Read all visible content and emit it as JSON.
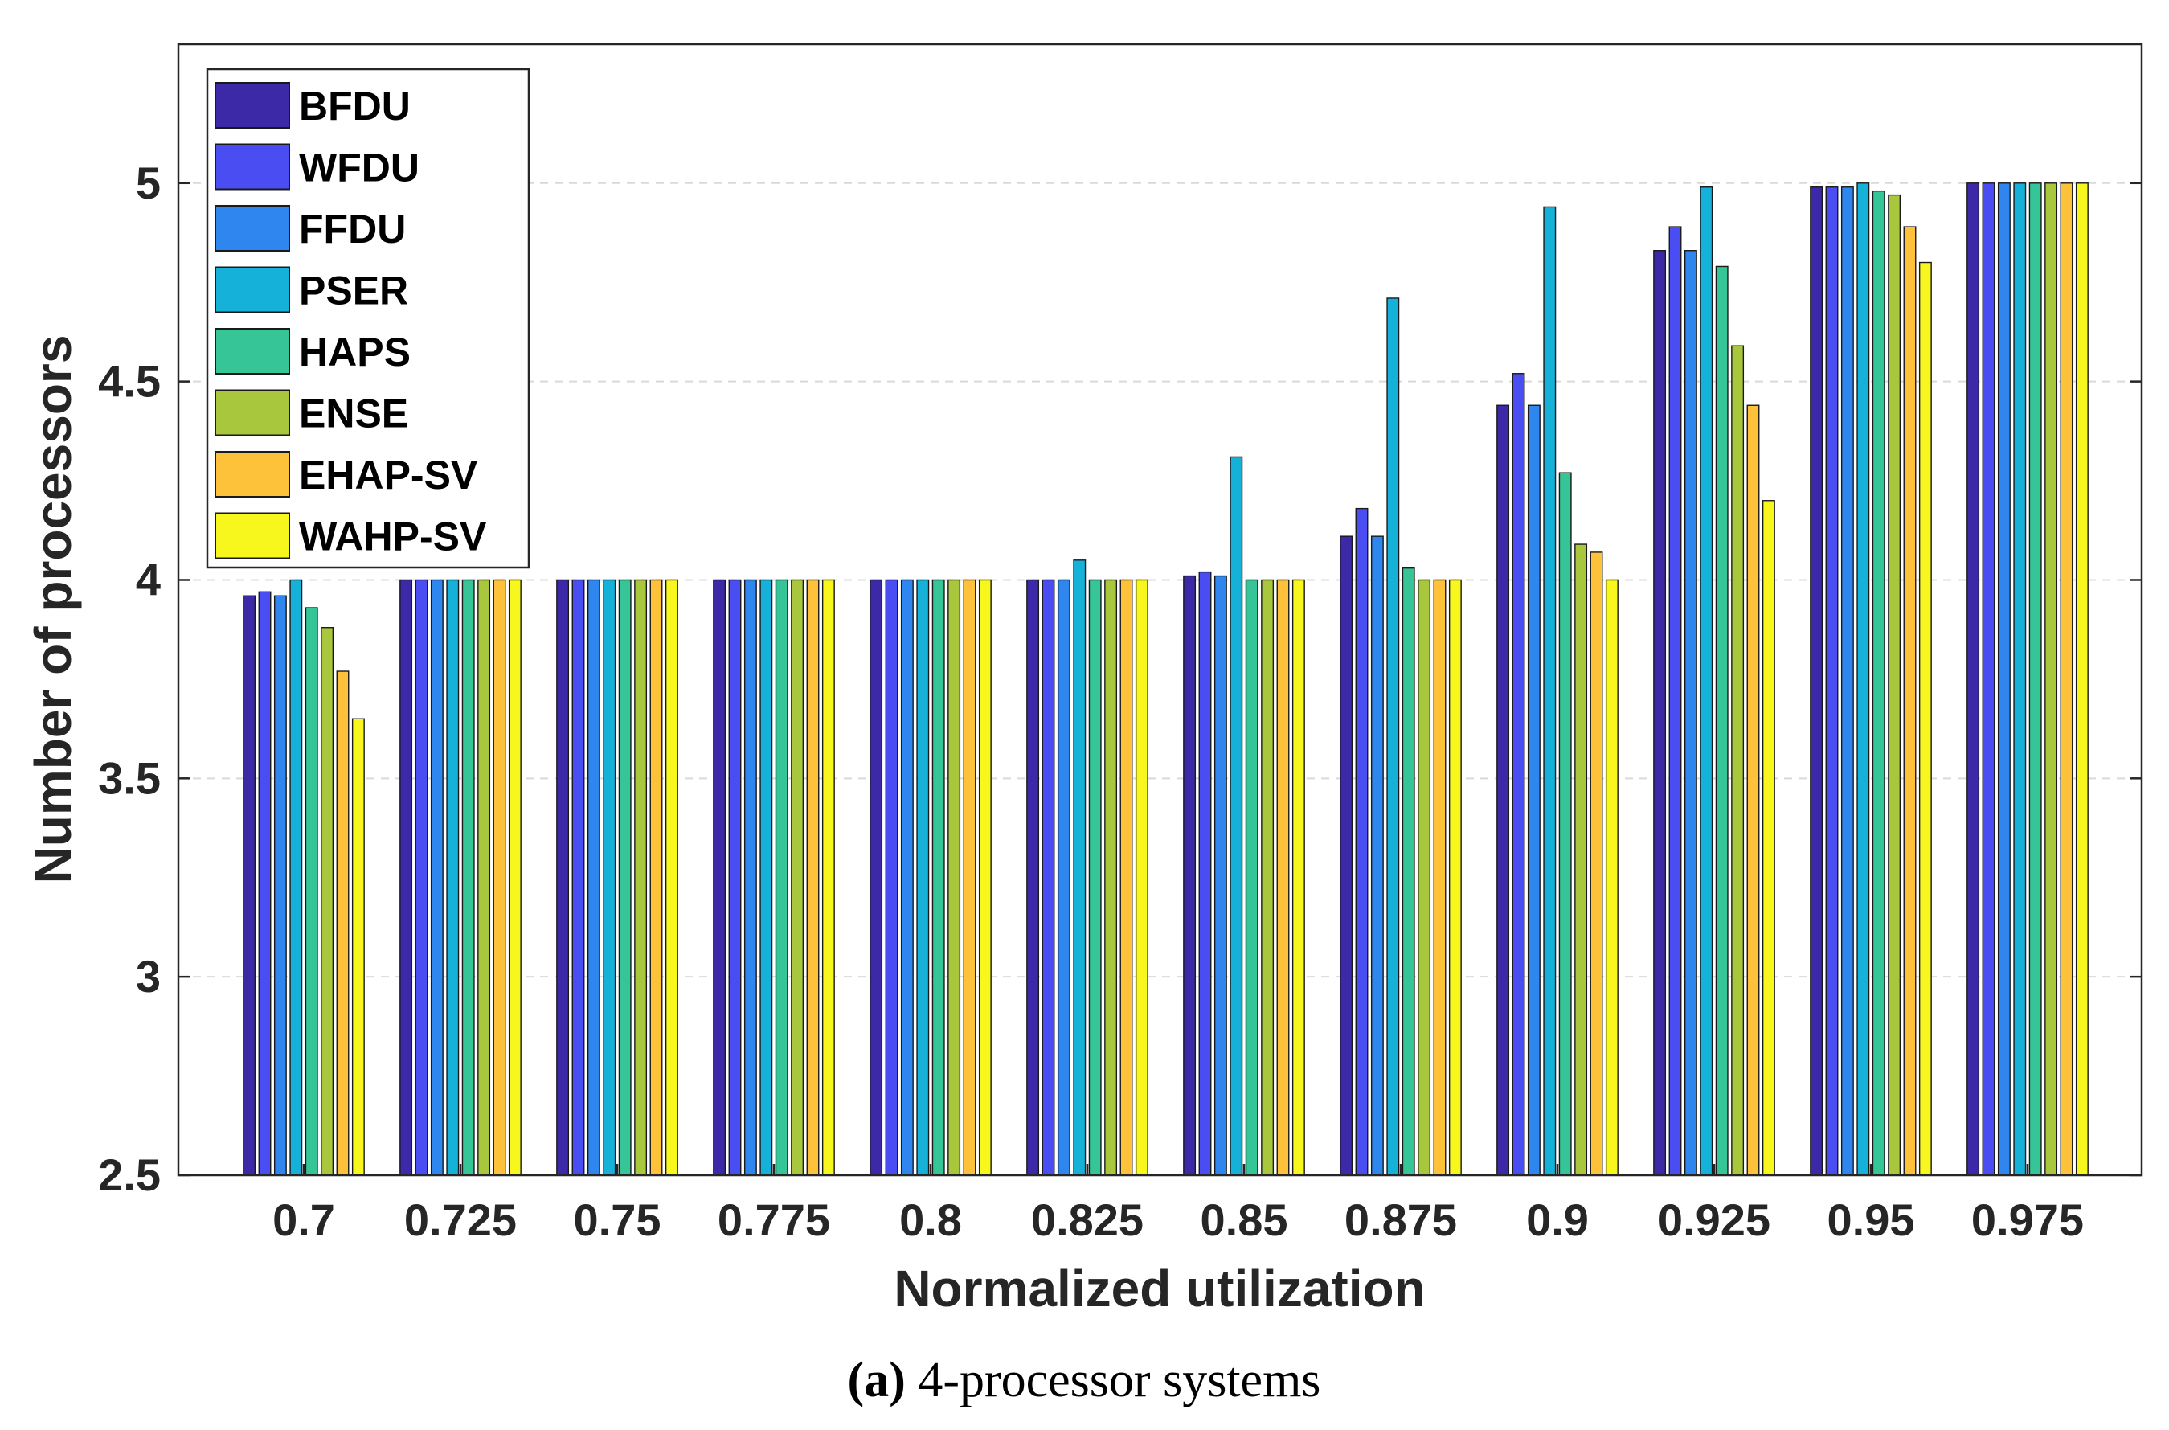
{
  "chart_data": {
    "type": "bar",
    "caption_prefix": "(a)",
    "caption_rest": " 4-processor systems",
    "xlabel": "Normalized utilization",
    "ylabel": "Number of processors",
    "ylim": [
      2.5,
      5.35
    ],
    "yticks": [
      "2.5",
      "3",
      "3.5",
      "4",
      "4.5",
      "5"
    ],
    "grid": true,
    "legend_position": "top-left",
    "categories": [
      "0.7",
      "0.725",
      "0.75",
      "0.775",
      "0.8",
      "0.825",
      "0.85",
      "0.875",
      "0.9",
      "0.925",
      "0.95",
      "0.975"
    ],
    "series": [
      {
        "name": "BFDU",
        "color": "#3b29a8",
        "values": [
          3.96,
          4.0,
          4.0,
          4.0,
          4.0,
          4.0,
          4.01,
          4.11,
          4.44,
          4.83,
          4.99,
          5.0
        ]
      },
      {
        "name": "WFDU",
        "color": "#4a4ef2",
        "values": [
          3.97,
          4.0,
          4.0,
          4.0,
          4.0,
          4.0,
          4.02,
          4.18,
          4.52,
          4.89,
          4.99,
          5.0
        ]
      },
      {
        "name": "FFDU",
        "color": "#2e86ee",
        "values": [
          3.96,
          4.0,
          4.0,
          4.0,
          4.0,
          4.0,
          4.01,
          4.11,
          4.44,
          4.83,
          4.99,
          5.0
        ]
      },
      {
        "name": "PSER",
        "color": "#16b1d8",
        "values": [
          4.0,
          4.0,
          4.0,
          4.0,
          4.0,
          4.05,
          4.31,
          4.71,
          4.94,
          4.99,
          5.0,
          5.0
        ]
      },
      {
        "name": "HAPS",
        "color": "#36c597",
        "values": [
          3.93,
          4.0,
          4.0,
          4.0,
          4.0,
          4.0,
          4.0,
          4.03,
          4.27,
          4.79,
          4.98,
          5.0
        ]
      },
      {
        "name": "ENSE",
        "color": "#a9c73c",
        "values": [
          3.88,
          4.0,
          4.0,
          4.0,
          4.0,
          4.0,
          4.0,
          4.0,
          4.09,
          4.59,
          4.97,
          5.0
        ]
      },
      {
        "name": "EHAP-SV",
        "color": "#fdc13a",
        "values": [
          3.77,
          4.0,
          4.0,
          4.0,
          4.0,
          4.0,
          4.0,
          4.0,
          4.07,
          4.44,
          4.89,
          5.0
        ]
      },
      {
        "name": "WAHP-SV",
        "color": "#f7f71d",
        "values": [
          3.65,
          4.0,
          4.0,
          4.0,
          4.0,
          4.0,
          4.0,
          4.0,
          4.0,
          4.2,
          4.8,
          5.0
        ]
      }
    ]
  }
}
